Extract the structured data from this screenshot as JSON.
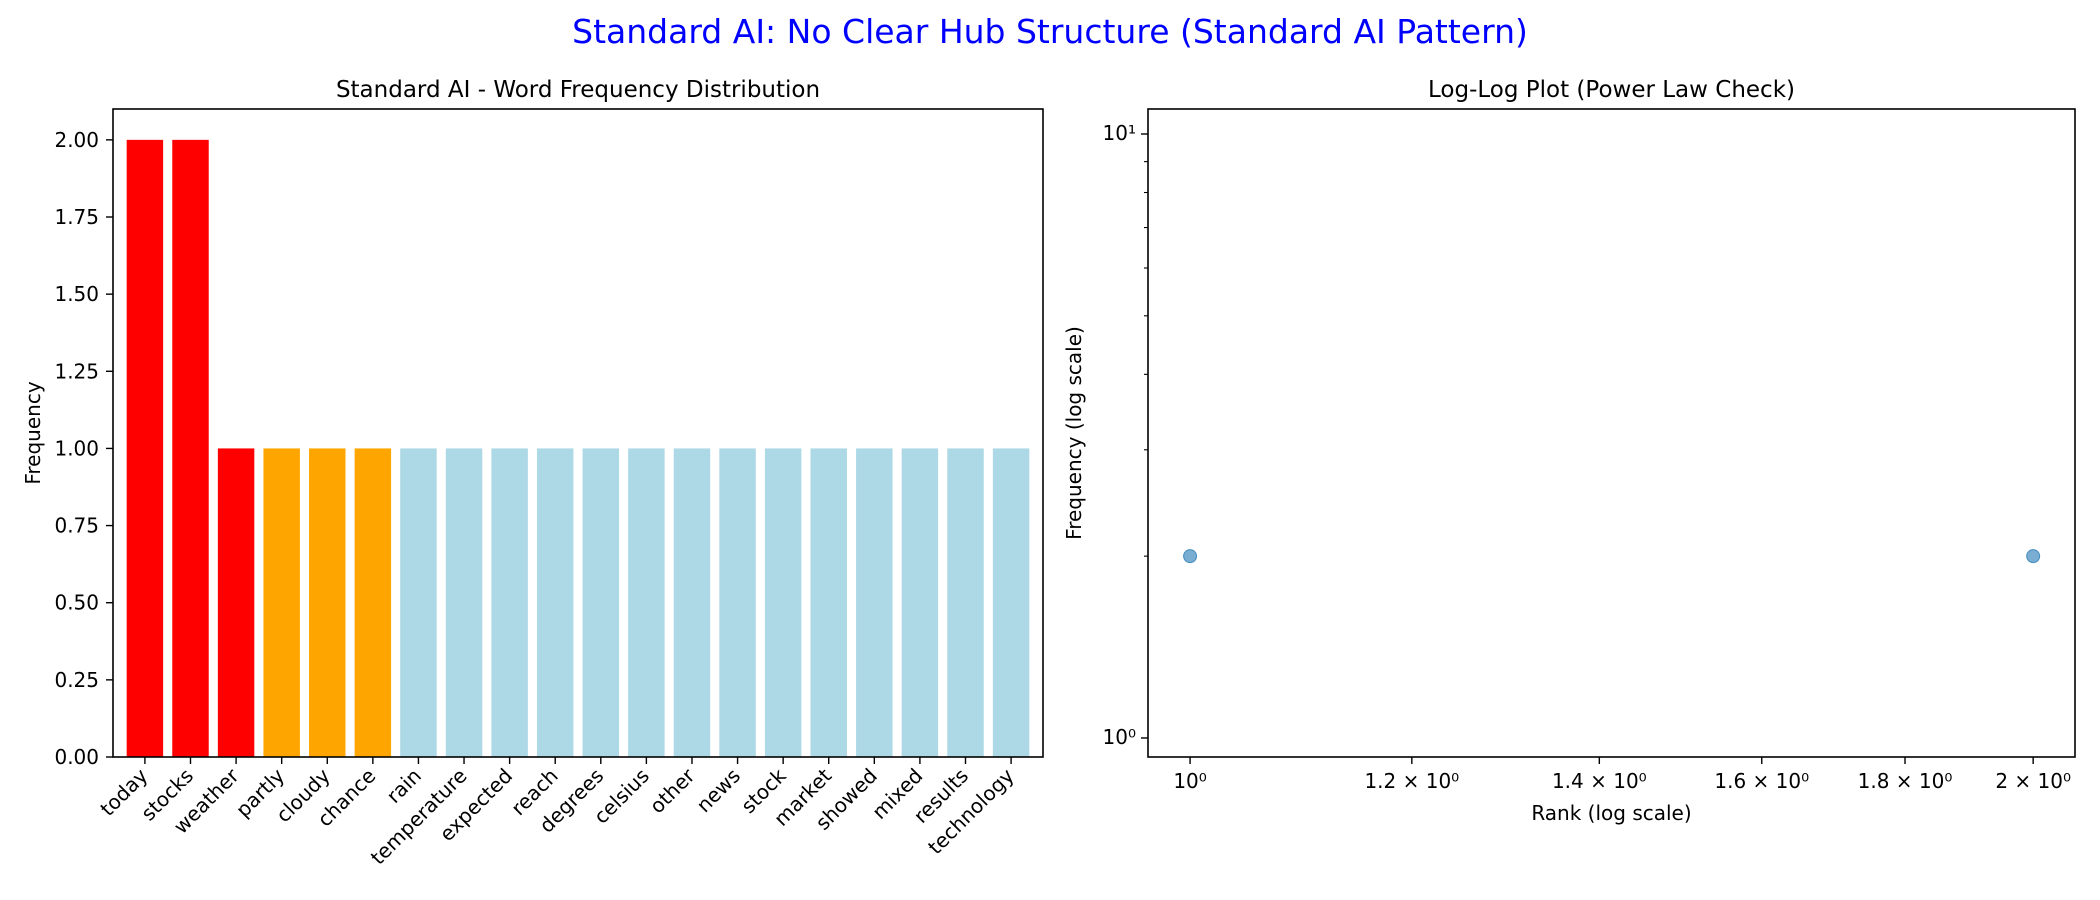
{
  "figure": {
    "title": "Standard AI: No Clear Hub Structure (Standard AI Pattern)",
    "title_color": "#0000ff"
  },
  "chart_data": [
    {
      "type": "bar",
      "title": "Standard AI - Word Frequency Distribution",
      "xlabel": "",
      "ylabel": "Frequency",
      "categories": [
        "today",
        "stocks",
        "weather",
        "partly",
        "cloudy",
        "chance",
        "rain",
        "temperature",
        "expected",
        "reach",
        "degrees",
        "celsius",
        "other",
        "news",
        "stock",
        "market",
        "showed",
        "mixed",
        "results",
        "technology"
      ],
      "values": [
        2,
        2,
        1,
        1,
        1,
        1,
        1,
        1,
        1,
        1,
        1,
        1,
        1,
        1,
        1,
        1,
        1,
        1,
        1,
        1
      ],
      "colors": [
        "#ff0000",
        "#ff0000",
        "#ff0000",
        "#ffa500",
        "#ffa500",
        "#ffa500",
        "#add8e6",
        "#add8e6",
        "#add8e6",
        "#add8e6",
        "#add8e6",
        "#add8e6",
        "#add8e6",
        "#add8e6",
        "#add8e6",
        "#add8e6",
        "#add8e6",
        "#add8e6",
        "#add8e6",
        "#add8e6"
      ],
      "ylim": [
        0,
        2.1
      ],
      "yticks": [
        0,
        0.25,
        0.5,
        0.75,
        1,
        1.25,
        1.5,
        1.75,
        2
      ],
      "ytick_labels": [
        "0.00",
        "0.25",
        "0.50",
        "0.75",
        "1.00",
        "1.25",
        "1.50",
        "1.75",
        "2.00"
      ],
      "grid": false
    },
    {
      "type": "scatter",
      "title": "Log-Log Plot (Power Law Check)",
      "xlabel": "Rank (log scale)",
      "ylabel": "Frequency (log scale)",
      "x_scale": "log",
      "y_scale": "log",
      "points": [
        {
          "x": 1,
          "y": 2
        },
        {
          "x": 2,
          "y": 2
        }
      ],
      "point_color": "#1f77b4",
      "xlim": [
        0.966,
        2.07
      ],
      "ylim": [
        0.93,
        11
      ],
      "xticks": [
        {
          "value": 1,
          "label": "10⁰"
        },
        {
          "value": 1.2,
          "label": "1.2 × 10⁰"
        },
        {
          "value": 1.4,
          "label": "1.4 × 10⁰"
        },
        {
          "value": 1.6,
          "label": "1.6 × 10⁰"
        },
        {
          "value": 1.8,
          "label": "1.8 × 10⁰"
        },
        {
          "value": 2,
          "label": "2 × 10⁰"
        }
      ],
      "yticks": [
        {
          "value": 1,
          "label": "10⁰"
        },
        {
          "value": 10,
          "label": "10¹"
        }
      ],
      "grid": false
    }
  ]
}
